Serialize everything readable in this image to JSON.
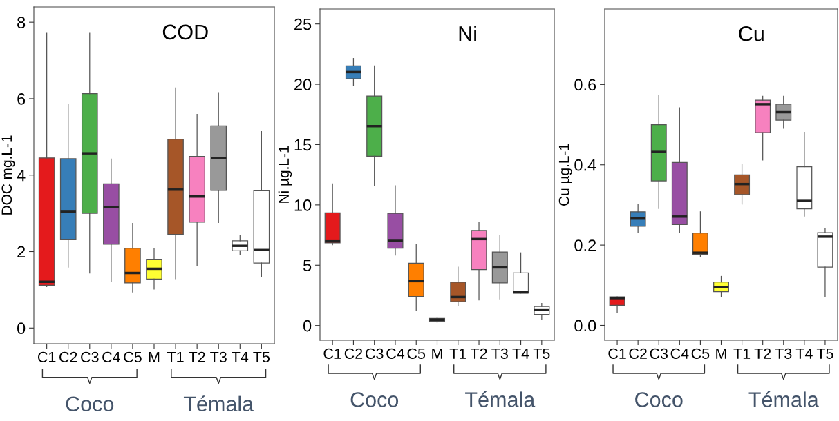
{
  "chart_data": [
    {
      "type": "box",
      "title": "COD",
      "ylabel": "DOC mg.L-1",
      "categories": [
        "C1",
        "C2",
        "C3",
        "C4",
        "C5",
        "M",
        "T1",
        "T2",
        "T3",
        "T4",
        "T5"
      ],
      "colors": [
        "#e41a1c",
        "#377eb8",
        "#4daf4a",
        "#984ea3",
        "#ff7f00",
        "#ffff33",
        "#a65628",
        "#f781bf",
        "#999999",
        "#ffffff",
        "#ffffff"
      ],
      "boxes": [
        {
          "low": 1.08,
          "q1": 1.12,
          "median": 1.21,
          "q3": 4.45,
          "high": 7.71
        },
        {
          "low": 1.59,
          "q1": 2.31,
          "median": 3.04,
          "q3": 4.43,
          "high": 5.85
        },
        {
          "low": 1.44,
          "q1": 3.0,
          "median": 4.57,
          "q3": 6.13,
          "high": 7.71
        },
        {
          "low": 1.22,
          "q1": 2.19,
          "median": 3.16,
          "q3": 3.77,
          "high": 4.42
        },
        {
          "low": 0.94,
          "q1": 1.18,
          "median": 1.44,
          "q3": 2.09,
          "high": 2.74
        },
        {
          "low": 1.02,
          "q1": 1.28,
          "median": 1.55,
          "q3": 1.8,
          "high": 2.07
        },
        {
          "low": 1.29,
          "q1": 2.45,
          "median": 3.62,
          "q3": 4.94,
          "high": 6.28
        },
        {
          "low": 1.64,
          "q1": 2.77,
          "median": 3.44,
          "q3": 4.49,
          "high": 5.59
        },
        {
          "low": 2.76,
          "q1": 3.6,
          "median": 4.45,
          "q3": 5.29,
          "high": 6.14
        },
        {
          "low": 1.92,
          "q1": 2.02,
          "median": 2.15,
          "q3": 2.28,
          "high": 2.43
        },
        {
          "low": 1.35,
          "q1": 1.7,
          "median": 2.04,
          "q3": 3.59,
          "high": 5.14
        }
      ],
      "ylim": [
        -0.41,
        8.4
      ],
      "yticks": [
        0,
        2,
        4,
        6,
        8
      ],
      "annotations": [
        "Coco",
        "Témala"
      ]
    },
    {
      "type": "box",
      "title": "Ni",
      "ylabel": "Ni µg.L-1",
      "categories": [
        "C1",
        "C2",
        "C3",
        "C4",
        "C5",
        "M",
        "T1",
        "T2",
        "T3",
        "T4",
        "T5"
      ],
      "colors": [
        "#e41a1c",
        "#377eb8",
        "#4daf4a",
        "#984ea3",
        "#ff7f00",
        "#ffff33",
        "#a65628",
        "#f781bf",
        "#999999",
        "#ffffff",
        "#ffffff"
      ],
      "boxes": [
        {
          "low": 6.69,
          "q1": 6.85,
          "median": 6.98,
          "q3": 9.34,
          "high": 11.75
        },
        {
          "low": 19.91,
          "q1": 20.46,
          "median": 21.01,
          "q3": 21.53,
          "high": 22.14
        },
        {
          "low": 11.59,
          "q1": 14.04,
          "median": 16.53,
          "q3": 19.03,
          "high": 21.53
        },
        {
          "low": 5.84,
          "q1": 6.41,
          "median": 7.02,
          "q3": 9.3,
          "high": 11.59
        },
        {
          "low": 1.22,
          "q1": 2.4,
          "median": 3.68,
          "q3": 5.17,
          "high": 6.73
        },
        {
          "low": 0.27,
          "q1": 0.36,
          "median": 0.48,
          "q3": 0.59,
          "high": 0.69
        },
        {
          "low": 1.64,
          "q1": 1.98,
          "median": 2.36,
          "q3": 3.59,
          "high": 4.84
        },
        {
          "low": 2.12,
          "q1": 4.63,
          "median": 7.17,
          "q3": 7.88,
          "high": 8.56
        },
        {
          "low": 2.21,
          "q1": 3.53,
          "median": 4.82,
          "q3": 6.1,
          "high": 7.46
        },
        {
          "low": 2.69,
          "q1": 2.69,
          "median": 2.75,
          "q3": 4.37,
          "high": 6.03
        },
        {
          "low": 0.53,
          "q1": 0.92,
          "median": 1.32,
          "q3": 1.58,
          "high": 1.83
        }
      ],
      "ylim": [
        -1.22,
        26.24
      ],
      "yticks": [
        0,
        5,
        10,
        15,
        20,
        25
      ],
      "annotations": [
        "Coco",
        "Témala"
      ]
    },
    {
      "type": "box",
      "title": "Cu",
      "ylabel": "Cu µg.L-1",
      "categories": [
        "C1",
        "C2",
        "C3",
        "C4",
        "C5",
        "M",
        "T1",
        "T2",
        "T3",
        "T4",
        "T5"
      ],
      "colors": [
        "#e41a1c",
        "#377eb8",
        "#4daf4a",
        "#984ea3",
        "#ff7f00",
        "#ffff33",
        "#a65628",
        "#f781bf",
        "#999999",
        "#ffffff",
        "#ffffff"
      ],
      "boxes": [
        {
          "low": 0.032,
          "q1": 0.05,
          "median": 0.068,
          "q3": 0.071,
          "high": 0.071
        },
        {
          "low": 0.231,
          "q1": 0.247,
          "median": 0.266,
          "q3": 0.283,
          "high": 0.301
        },
        {
          "low": 0.291,
          "q1": 0.36,
          "median": 0.432,
          "q3": 0.5,
          "high": 0.572
        },
        {
          "low": 0.231,
          "q1": 0.251,
          "median": 0.271,
          "q3": 0.406,
          "high": 0.542
        },
        {
          "low": 0.172,
          "q1": 0.177,
          "median": 0.181,
          "q3": 0.23,
          "high": 0.283
        },
        {
          "low": 0.072,
          "q1": 0.084,
          "median": 0.095,
          "q3": 0.108,
          "high": 0.122
        },
        {
          "low": 0.302,
          "q1": 0.326,
          "median": 0.352,
          "q3": 0.375,
          "high": 0.402
        },
        {
          "low": 0.412,
          "q1": 0.48,
          "median": 0.551,
          "q3": 0.561,
          "high": 0.571
        },
        {
          "low": 0.491,
          "q1": 0.511,
          "median": 0.531,
          "q3": 0.551,
          "high": 0.571
        },
        {
          "low": 0.272,
          "q1": 0.29,
          "median": 0.31,
          "q3": 0.395,
          "high": 0.481
        },
        {
          "low": 0.072,
          "q1": 0.145,
          "median": 0.221,
          "q3": 0.231,
          "high": 0.241
        }
      ],
      "ylim": [
        -0.037,
        0.788
      ],
      "yticks": [
        {
          "value": 0,
          "label": "0.0"
        },
        0.2,
        0.4,
        0.6
      ],
      "annotations": [
        "Coco",
        "Témala"
      ]
    }
  ]
}
